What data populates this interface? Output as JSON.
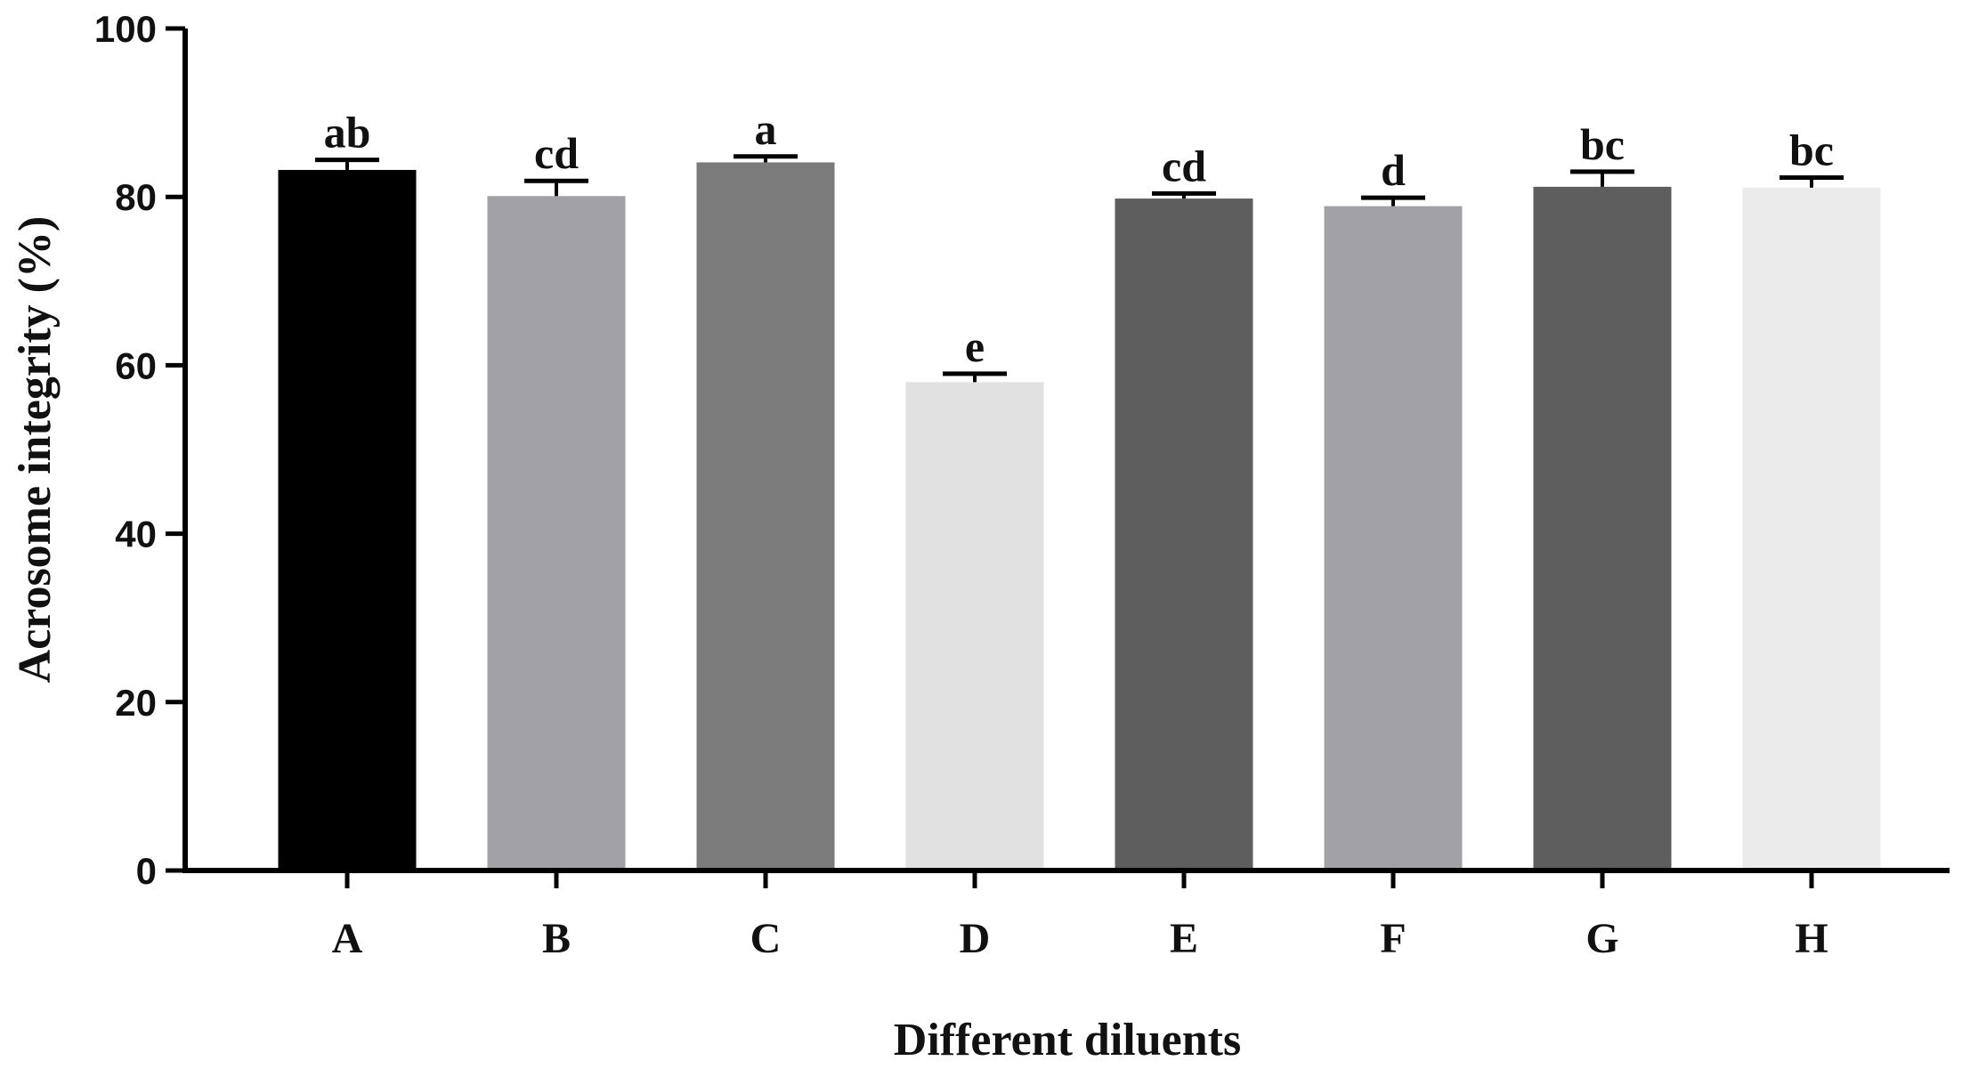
{
  "chart_data": {
    "type": "bar",
    "title": "",
    "xlabel": "Different diluents",
    "ylabel": "Acrosome integrity (%)",
    "ylim": [
      0,
      100
    ],
    "yticks": [
      0,
      20,
      40,
      60,
      80,
      100
    ],
    "grid": false,
    "legend": "none",
    "categories": [
      "A",
      "B",
      "C",
      "D",
      "E",
      "F",
      "G",
      "H"
    ],
    "values": [
      83.2,
      80.1,
      84.1,
      58.0,
      79.8,
      78.9,
      81.2,
      81.1
    ],
    "errors": [
      1.2,
      1.8,
      0.7,
      1.0,
      0.6,
      1.0,
      1.8,
      1.2
    ],
    "significance_labels": [
      "ab",
      "cd",
      "a",
      "e",
      "cd",
      "d",
      "bc",
      "bc"
    ],
    "bar_colors": [
      "#000000",
      "#a2a2a6",
      "#7b7b7b",
      "#e1e1e1",
      "#5e5e5e",
      "#a2a2a6",
      "#5e5e5e",
      "#ebebeb"
    ],
    "axis_color": "#000000"
  }
}
